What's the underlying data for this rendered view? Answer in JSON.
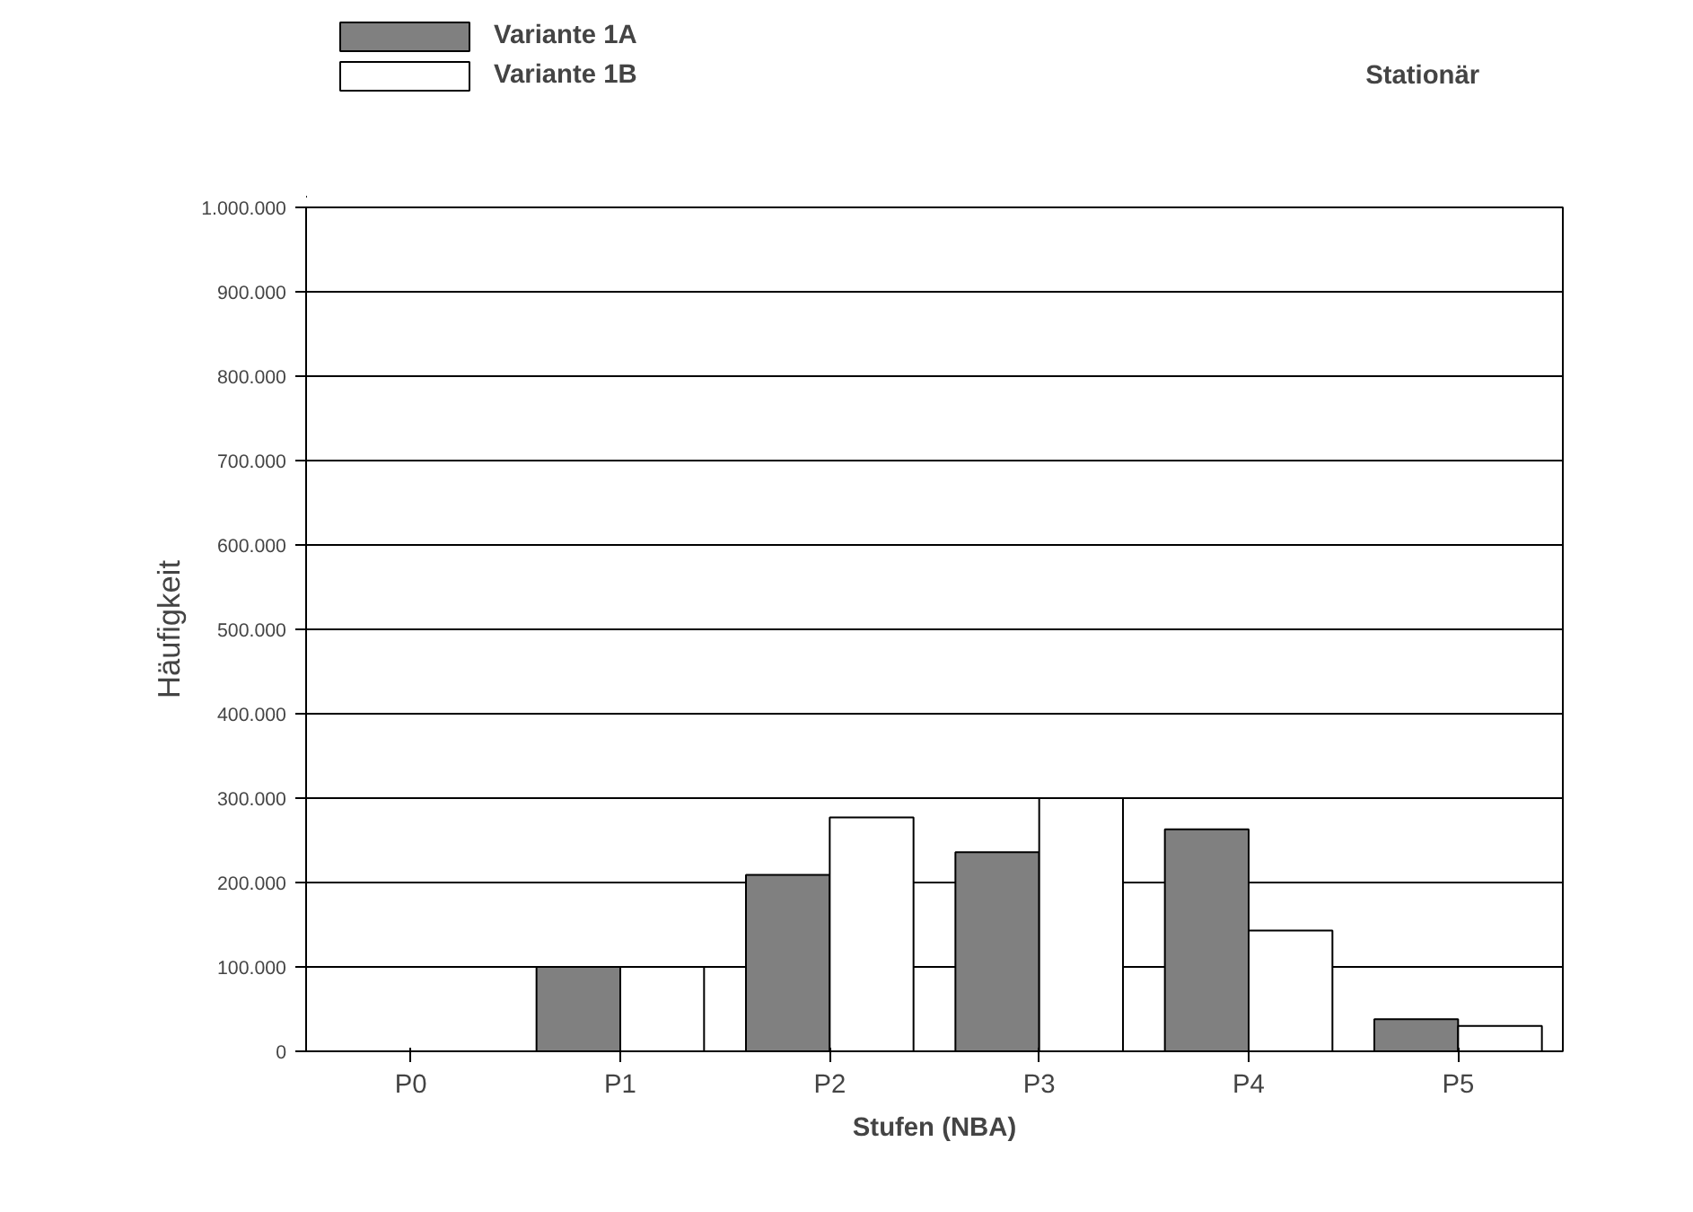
{
  "chart_data": {
    "type": "bar",
    "annotations": [
      "Stationär"
    ],
    "xlabel": "Stufen (NBA)",
    "ylabel": "Häufigkeit",
    "categories": [
      "P0",
      "P1",
      "P2",
      "P3",
      "P4",
      "P5"
    ],
    "series": [
      {
        "name": "Variante 1A",
        "color": "#808080",
        "values": [
          0,
          100000,
          209000,
          236000,
          263000,
          38000
        ]
      },
      {
        "name": "Variante 1B",
        "color": "#ffffff",
        "values": [
          0,
          100000,
          277000,
          300000,
          143000,
          30000
        ]
      }
    ],
    "ylim": [
      0,
      1000000
    ],
    "yticks": [
      {
        "value": 0,
        "label": "0"
      },
      {
        "value": 100000,
        "label": "100.000"
      },
      {
        "value": 200000,
        "label": "200.000"
      },
      {
        "value": 300000,
        "label": "300.000"
      },
      {
        "value": 400000,
        "label": "400.000"
      },
      {
        "value": 500000,
        "label": "500.000"
      },
      {
        "value": 600000,
        "label": "600.000"
      },
      {
        "value": 700000,
        "label": "700.000"
      },
      {
        "value": 800000,
        "label": "800.000"
      },
      {
        "value": 900000,
        "label": "900.000"
      },
      {
        "value": 1000000,
        "label": "1.000.000"
      }
    ],
    "grid": "y",
    "legend": "top left"
  }
}
